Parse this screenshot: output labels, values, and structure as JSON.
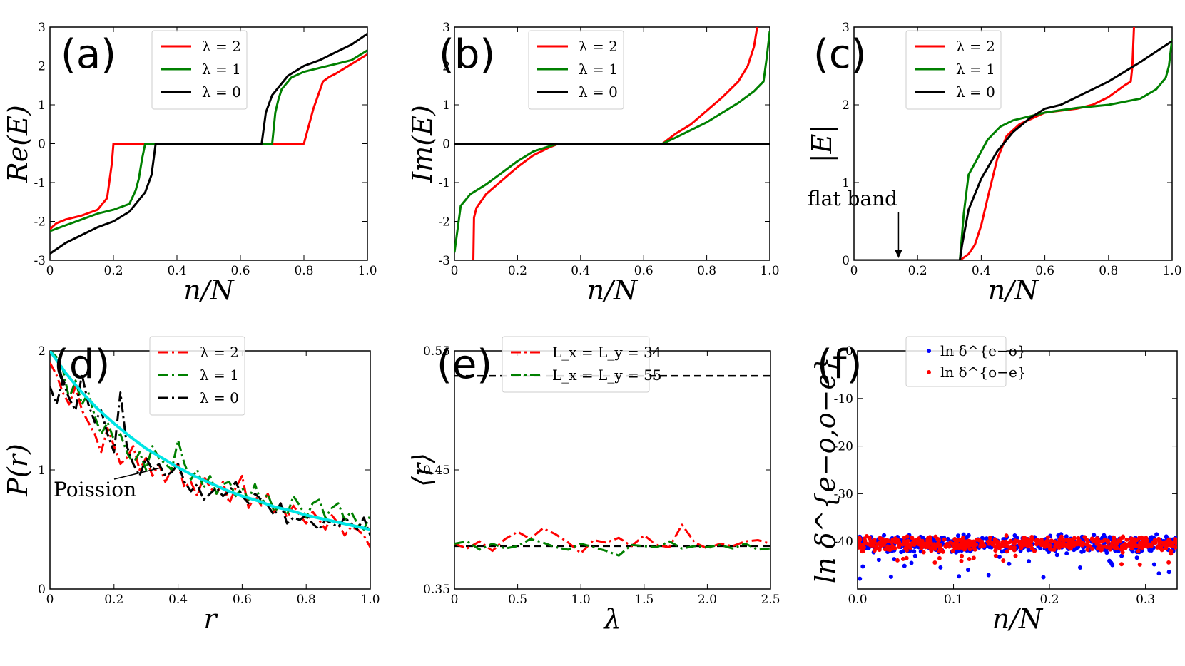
{
  "chart_data": [
    {
      "panel": "(a)",
      "type": "line",
      "xlabel": "n/N",
      "ylabel": "Re(E)",
      "xlim": [
        0,
        1
      ],
      "ylim": [
        -3,
        3
      ],
      "xticks": [
        "0",
        "0.2",
        "0.4",
        "0.6",
        "0.8",
        "1.0"
      ],
      "yticks": [
        "-3",
        "-2",
        "-1",
        "0",
        "1",
        "2",
        "3"
      ],
      "legend_position": "top-center",
      "series": [
        {
          "name": "λ = 2",
          "color": "#ff0000",
          "style": "solid",
          "x": [
            0,
            0.02,
            0.05,
            0.1,
            0.15,
            0.18,
            0.195,
            0.2,
            0.205,
            0.79,
            0.795,
            0.8,
            0.83,
            0.86,
            0.88,
            0.9,
            0.93,
            0.96,
            1.0
          ],
          "y": [
            -2.2,
            -2.05,
            -1.95,
            -1.85,
            -1.7,
            -1.4,
            -0.5,
            0,
            0,
            0,
            0,
            0,
            0.9,
            1.6,
            1.72,
            1.8,
            1.95,
            2.1,
            2.3
          ]
        },
        {
          "name": "λ = 1",
          "color": "#008000",
          "style": "solid",
          "x": [
            0,
            0.05,
            0.1,
            0.15,
            0.2,
            0.25,
            0.27,
            0.28,
            0.29,
            0.3,
            0.305,
            0.69,
            0.7,
            0.71,
            0.72,
            0.73,
            0.76,
            0.8,
            0.85,
            0.9,
            0.95,
            1.0
          ],
          "y": [
            -2.25,
            -2.1,
            -1.95,
            -1.8,
            -1.7,
            -1.55,
            -1.2,
            -0.9,
            -0.4,
            0,
            0,
            0,
            0,
            0.8,
            1.15,
            1.4,
            1.7,
            1.85,
            1.95,
            2.05,
            2.15,
            2.4
          ]
        },
        {
          "name": "λ = 0",
          "color": "#000000",
          "style": "solid",
          "x": [
            0,
            0.05,
            0.1,
            0.15,
            0.2,
            0.25,
            0.3,
            0.32,
            0.333,
            0.667,
            0.68,
            0.7,
            0.75,
            0.8,
            0.85,
            0.9,
            0.95,
            1.0
          ],
          "y": [
            -2.83,
            -2.55,
            -2.35,
            -2.15,
            -2.0,
            -1.75,
            -1.25,
            -0.8,
            0,
            0,
            0.8,
            1.25,
            1.75,
            2.0,
            2.15,
            2.35,
            2.55,
            2.83
          ]
        }
      ]
    },
    {
      "panel": "(b)",
      "type": "line",
      "xlabel": "n/N",
      "ylabel": "Im(E)",
      "xlim": [
        0,
        1
      ],
      "ylim": [
        -3,
        3
      ],
      "xticks": [
        "0",
        "0.2",
        "0.4",
        "0.6",
        "0.8",
        "1.0"
      ],
      "yticks": [
        "-3",
        "-2",
        "-1",
        "0",
        "1",
        "2",
        "3"
      ],
      "legend_position": "top-center",
      "series": [
        {
          "name": "λ = 2",
          "color": "#ff0000",
          "style": "solid",
          "x": [
            0.06,
            0.062,
            0.07,
            0.1,
            0.15,
            0.2,
            0.25,
            0.3,
            0.33,
            0.66,
            0.7,
            0.75,
            0.8,
            0.85,
            0.9,
            0.93,
            0.95,
            0.96,
            0.97
          ],
          "y": [
            -3,
            -1.9,
            -1.65,
            -1.3,
            -0.95,
            -0.6,
            -0.3,
            -0.1,
            0,
            0,
            0.25,
            0.5,
            0.85,
            1.2,
            1.6,
            2.0,
            2.5,
            3.0,
            3.2
          ]
        },
        {
          "name": "λ = 1",
          "color": "#008000",
          "style": "solid",
          "x": [
            0,
            0.01,
            0.02,
            0.05,
            0.1,
            0.15,
            0.2,
            0.25,
            0.3,
            0.33,
            0.66,
            0.7,
            0.75,
            0.8,
            0.85,
            0.9,
            0.95,
            0.98,
            0.99,
            1.0
          ],
          "y": [
            -2.8,
            -2.2,
            -1.6,
            -1.3,
            -1.05,
            -0.75,
            -0.45,
            -0.2,
            -0.07,
            0,
            0,
            0.15,
            0.35,
            0.55,
            0.8,
            1.05,
            1.35,
            1.6,
            2.2,
            2.9
          ]
        },
        {
          "name": "λ = 0",
          "color": "#000000",
          "style": "solid",
          "x": [
            0,
            1
          ],
          "y": [
            0,
            0
          ]
        }
      ]
    },
    {
      "panel": "(c)",
      "type": "line",
      "xlabel": "n/N",
      "ylabel": "|E|",
      "xlim": [
        0,
        1
      ],
      "ylim": [
        0,
        3
      ],
      "xticks": [
        "0",
        "0.2",
        "0.4",
        "0.6",
        "0.8",
        "1.0"
      ],
      "yticks": [
        "0",
        "1",
        "2",
        "3"
      ],
      "annotation": "flat band",
      "legend_position": "top-center",
      "series": [
        {
          "name": "λ = 2",
          "color": "#ff0000",
          "style": "solid",
          "x": [
            0,
            0.333,
            0.34,
            0.36,
            0.38,
            0.4,
            0.42,
            0.45,
            0.48,
            0.52,
            0.6,
            0.7,
            0.75,
            0.8,
            0.85,
            0.87,
            0.875,
            0.88,
            0.885
          ],
          "y": [
            0,
            0,
            0.02,
            0.08,
            0.2,
            0.45,
            0.8,
            1.3,
            1.6,
            1.75,
            1.9,
            1.95,
            2.0,
            2.1,
            2.25,
            2.3,
            2.5,
            3.0,
            3.2
          ]
        },
        {
          "name": "λ = 1",
          "color": "#008000",
          "style": "solid",
          "x": [
            0,
            0.333,
            0.345,
            0.36,
            0.38,
            0.42,
            0.46,
            0.5,
            0.6,
            0.7,
            0.8,
            0.9,
            0.95,
            0.98,
            0.99,
            1.0
          ],
          "y": [
            0,
            0,
            0.6,
            1.1,
            1.25,
            1.55,
            1.72,
            1.8,
            1.9,
            1.96,
            2.0,
            2.08,
            2.2,
            2.35,
            2.5,
            2.85
          ]
        },
        {
          "name": "λ = 0",
          "color": "#000000",
          "style": "solid",
          "x": [
            0,
            0.333,
            0.34,
            0.36,
            0.4,
            0.45,
            0.5,
            0.55,
            0.6,
            0.65,
            0.7,
            0.8,
            0.9,
            1.0
          ],
          "y": [
            0,
            0,
            0.2,
            0.65,
            1.05,
            1.4,
            1.65,
            1.82,
            1.95,
            2.0,
            2.1,
            2.3,
            2.55,
            2.82
          ]
        }
      ]
    },
    {
      "panel": "(d)",
      "type": "line",
      "xlabel": "r",
      "ylabel": "P(r)",
      "xlim": [
        0,
        1
      ],
      "ylim": [
        0,
        2
      ],
      "xticks": [
        "0",
        "0.2",
        "0.4",
        "0.6",
        "0.8",
        "1.0"
      ],
      "yticks": [
        "0",
        "1",
        "2"
      ],
      "annotation": "Poission",
      "legend_position": "top-right",
      "series": [
        {
          "name": "λ = 2",
          "color": "#ff0000",
          "style": "dashdot",
          "x": [
            0,
            0.02,
            0.04,
            0.06,
            0.08,
            0.1,
            0.12,
            0.14,
            0.16,
            0.18,
            0.2,
            0.22,
            0.24,
            0.26,
            0.28,
            0.3,
            0.32,
            0.34,
            0.36,
            0.38,
            0.4,
            0.42,
            0.44,
            0.46,
            0.48,
            0.5,
            0.52,
            0.54,
            0.56,
            0.58,
            0.6,
            0.62,
            0.64,
            0.66,
            0.68,
            0.7,
            0.72,
            0.74,
            0.76,
            0.78,
            0.8,
            0.82,
            0.84,
            0.86,
            0.88,
            0.9,
            0.92,
            0.94,
            0.96,
            0.98,
            1.0
          ],
          "y": [
            1.9,
            1.8,
            1.65,
            1.55,
            1.7,
            1.5,
            1.4,
            1.3,
            1.15,
            1.35,
            1.2,
            1.05,
            1.1,
            1.2,
            1.0,
            1.1,
            0.95,
            1.05,
            0.9,
            1.0,
            1.05,
            0.85,
            0.9,
            0.78,
            0.95,
            0.85,
            0.8,
            0.9,
            0.72,
            0.85,
            0.95,
            0.68,
            0.78,
            0.7,
            0.8,
            0.65,
            0.72,
            0.6,
            0.7,
            0.62,
            0.55,
            0.65,
            0.58,
            0.5,
            0.62,
            0.55,
            0.45,
            0.52,
            0.5,
            0.45,
            0.35
          ]
        },
        {
          "name": "λ = 1",
          "color": "#008000",
          "style": "dashdot",
          "x": [
            0,
            0.02,
            0.04,
            0.06,
            0.08,
            0.1,
            0.12,
            0.14,
            0.16,
            0.18,
            0.2,
            0.22,
            0.24,
            0.26,
            0.28,
            0.3,
            0.32,
            0.34,
            0.36,
            0.38,
            0.4,
            0.42,
            0.44,
            0.46,
            0.48,
            0.5,
            0.52,
            0.54,
            0.56,
            0.58,
            0.6,
            0.62,
            0.64,
            0.66,
            0.68,
            0.7,
            0.72,
            0.74,
            0.76,
            0.78,
            0.8,
            0.82,
            0.84,
            0.86,
            0.88,
            0.9,
            0.92,
            0.94,
            0.96,
            0.98,
            1.0
          ],
          "y": [
            2.0,
            1.95,
            1.85,
            1.6,
            1.75,
            1.55,
            1.65,
            1.45,
            1.3,
            1.4,
            1.25,
            1.3,
            1.15,
            1.05,
            1.15,
            1.0,
            1.2,
            1.1,
            1.05,
            1.0,
            1.25,
            1.05,
            0.92,
            1.0,
            0.85,
            0.95,
            0.8,
            0.88,
            0.9,
            0.78,
            0.85,
            0.75,
            0.88,
            0.72,
            0.8,
            0.65,
            0.7,
            0.62,
            0.78,
            0.7,
            0.6,
            0.72,
            0.75,
            0.6,
            0.68,
            0.72,
            0.58,
            0.65,
            0.55,
            0.5,
            0.62
          ]
        },
        {
          "name": "λ = 0",
          "color": "#000000",
          "style": "dashdot",
          "x": [
            0,
            0.02,
            0.04,
            0.06,
            0.08,
            0.1,
            0.12,
            0.14,
            0.16,
            0.18,
            0.2,
            0.22,
            0.24,
            0.26,
            0.28,
            0.3,
            0.32,
            0.34,
            0.36,
            0.38,
            0.4,
            0.42,
            0.44,
            0.46,
            0.48,
            0.5,
            0.52,
            0.54,
            0.56,
            0.58,
            0.6,
            0.62,
            0.64,
            0.66,
            0.68,
            0.7,
            0.72,
            0.74,
            0.76,
            0.78,
            0.8,
            0.82,
            0.84,
            0.86,
            0.88,
            0.9,
            0.92,
            0.94,
            0.96,
            0.98,
            1.0
          ],
          "y": [
            1.7,
            1.55,
            1.75,
            1.6,
            1.5,
            1.8,
            1.55,
            1.4,
            1.5,
            1.3,
            1.15,
            1.65,
            1.2,
            1.05,
            0.95,
            1.1,
            1.0,
            1.05,
            0.95,
            0.98,
            1.05,
            0.9,
            0.82,
            0.88,
            0.75,
            0.8,
            0.85,
            0.78,
            0.82,
            0.9,
            0.78,
            0.72,
            0.8,
            0.75,
            0.7,
            0.62,
            0.72,
            0.55,
            0.6,
            0.58,
            0.62,
            0.55,
            0.5,
            0.58,
            0.55,
            0.52,
            0.6,
            0.55,
            0.5,
            0.6,
            0.45
          ]
        },
        {
          "name": "Poission",
          "color": "#00e5e5",
          "style": "solid",
          "x": [
            0,
            0.05,
            0.1,
            0.15,
            0.2,
            0.25,
            0.3,
            0.35,
            0.4,
            0.45,
            0.5,
            0.55,
            0.6,
            0.65,
            0.7,
            0.75,
            0.8,
            0.85,
            0.9,
            0.95,
            1.0
          ],
          "y": [
            2.0,
            1.81,
            1.65,
            1.51,
            1.39,
            1.28,
            1.18,
            1.1,
            1.02,
            0.95,
            0.89,
            0.83,
            0.78,
            0.74,
            0.69,
            0.66,
            0.62,
            0.59,
            0.56,
            0.53,
            0.5
          ]
        }
      ]
    },
    {
      "panel": "(e)",
      "type": "line",
      "xlabel": "λ",
      "ylabel": "⟨r⟩",
      "xlim": [
        0,
        2.5
      ],
      "ylim": [
        0.35,
        0.55
      ],
      "xticks": [
        "0",
        "0.5",
        "1.0",
        "1.5",
        "2.0",
        "2.5"
      ],
      "yticks": [
        "0.35",
        "0.45",
        "0.55"
      ],
      "legend_position": "top-center",
      "hlines": [
        0.529,
        0.386
      ],
      "series": [
        {
          "name": "L_x = L_y = 34",
          "color": "#ff0000",
          "style": "dashdot",
          "x": [
            0,
            0.1,
            0.2,
            0.3,
            0.4,
            0.5,
            0.6,
            0.7,
            0.8,
            0.9,
            1.0,
            1.1,
            1.2,
            1.3,
            1.4,
            1.5,
            1.6,
            1.7,
            1.8,
            1.9,
            2.0,
            2.1,
            2.2,
            2.3,
            2.4,
            2.5
          ],
          "y": [
            0.388,
            0.384,
            0.39,
            0.382,
            0.392,
            0.398,
            0.392,
            0.401,
            0.396,
            0.389,
            0.38,
            0.391,
            0.389,
            0.393,
            0.386,
            0.395,
            0.387,
            0.385,
            0.404,
            0.389,
            0.384,
            0.388,
            0.386,
            0.39,
            0.391,
            0.388
          ]
        },
        {
          "name": "L_x = L_y = 55",
          "color": "#008000",
          "style": "dashdot",
          "x": [
            0,
            0.1,
            0.2,
            0.3,
            0.4,
            0.5,
            0.6,
            0.7,
            0.8,
            0.9,
            1.0,
            1.1,
            1.2,
            1.3,
            1.4,
            1.5,
            1.6,
            1.7,
            1.8,
            1.9,
            2.0,
            2.1,
            2.2,
            2.3,
            2.4,
            2.5
          ],
          "y": [
            0.388,
            0.39,
            0.383,
            0.388,
            0.384,
            0.386,
            0.392,
            0.389,
            0.385,
            0.383,
            0.388,
            0.385,
            0.382,
            0.378,
            0.387,
            0.386,
            0.385,
            0.39,
            0.384,
            0.386,
            0.385,
            0.387,
            0.384,
            0.388,
            0.383,
            0.384
          ]
        }
      ]
    },
    {
      "panel": "(f)",
      "type": "scatter",
      "xlabel": "n/N",
      "ylabel": "ln δ^{e−o,o−e}",
      "xlim": [
        0,
        0.333
      ],
      "ylim": [
        -50,
        0
      ],
      "xticks": [
        "0.0",
        "0.1",
        "0.2",
        "0.3"
      ],
      "yticks": [
        "0",
        "-10",
        "-20",
        "-30",
        "-40"
      ],
      "legend_position": "top-center",
      "series": [
        {
          "name": "ln δ^{e−o}",
          "color": "#0000ff",
          "mean": -40.5,
          "spread": 1.6,
          "outlier_min": -48
        },
        {
          "name": "ln δ^{o−e}",
          "color": "#ff0000",
          "mean": -40.5,
          "spread": 1.4,
          "outlier_min": -45
        }
      ]
    }
  ],
  "labels": {
    "panel_a": "(a)",
    "panel_b": "(b)",
    "panel_c": "(c)",
    "panel_d": "(d)",
    "panel_e": "(e)",
    "panel_f": "(f)",
    "flat_band": "flat band",
    "poission": "Poission"
  }
}
